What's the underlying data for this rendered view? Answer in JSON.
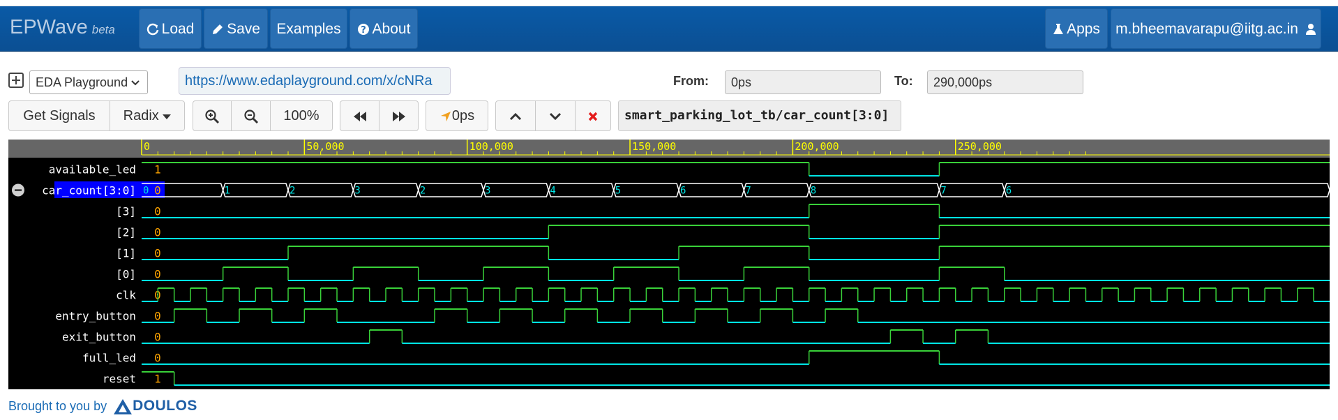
{
  "navbar": {
    "brand": "EPWave",
    "beta": "beta",
    "load": "Load",
    "save": "Save",
    "examples": "Examples",
    "about": "About",
    "apps": "Apps",
    "user": "m.bheemavarapu@iitg.ac.in"
  },
  "controls": {
    "playground_select": "EDA Playground",
    "url": "https://www.edaplayground.com/x/cNRa",
    "from_label": "From:",
    "from_value": "0ps",
    "to_label": "To:",
    "to_value": "290,000ps",
    "get_signals": "Get Signals",
    "radix": "Radix",
    "zoom_level": "100%",
    "cursor_time": "0ps",
    "selected_signal": "smart_parking_lot_tb/car_count[3:0]"
  },
  "icons": {
    "load": "refresh-icon",
    "save": "pencil-icon",
    "about": "question-circle-icon",
    "apps": "flask-icon",
    "user": "user-icon"
  },
  "colors": {
    "navbar": "#0b4f93",
    "wave_bg": "#000000",
    "wave_signal": "#00e5e5",
    "wave_high": "#39d139",
    "ruler_bg": "#666666",
    "ruler_text": "#ffff00",
    "value": "#ffa500",
    "selected": "#0000ff"
  },
  "timeline": {
    "ticks": [
      "0",
      "50,000",
      "100,000",
      "150,000",
      "200,000",
      "250,000"
    ],
    "tick_values": [
      0,
      50000,
      100000,
      150000,
      200000,
      250000
    ],
    "end": 290000,
    "clock_period": 10000
  },
  "signals": [
    {
      "name": "available_led",
      "value": "1",
      "type": "bit",
      "changes": [
        [
          0,
          1
        ],
        [
          205000,
          0
        ],
        [
          245000,
          1
        ]
      ]
    },
    {
      "name": "car_count[3:0]",
      "value": "0",
      "type": "bus",
      "selected": true,
      "collapse": true,
      "segments": [
        [
          0,
          "0"
        ],
        [
          25000,
          "1"
        ],
        [
          45000,
          "2"
        ],
        [
          65000,
          "3"
        ],
        [
          85000,
          "2"
        ],
        [
          105000,
          "3"
        ],
        [
          125000,
          "4"
        ],
        [
          145000,
          "5"
        ],
        [
          165000,
          "6"
        ],
        [
          185000,
          "7"
        ],
        [
          205000,
          "8"
        ],
        [
          245000,
          "7"
        ],
        [
          265000,
          "6"
        ]
      ]
    },
    {
      "name": "[3]",
      "value": "0",
      "type": "bit",
      "changes": [
        [
          0,
          0
        ],
        [
          205000,
          1
        ],
        [
          245000,
          0
        ]
      ]
    },
    {
      "name": "[2]",
      "value": "0",
      "type": "bit",
      "changes": [
        [
          0,
          0
        ],
        [
          125000,
          1
        ],
        [
          205000,
          0
        ],
        [
          245000,
          1
        ]
      ]
    },
    {
      "name": "[1]",
      "value": "0",
      "type": "bit",
      "changes": [
        [
          0,
          0
        ],
        [
          45000,
          1
        ],
        [
          125000,
          0
        ],
        [
          165000,
          1
        ],
        [
          205000,
          0
        ],
        [
          245000,
          1
        ]
      ]
    },
    {
      "name": "[0]",
      "value": "0",
      "type": "bit",
      "changes": [
        [
          0,
          0
        ],
        [
          25000,
          1
        ],
        [
          45000,
          0
        ],
        [
          65000,
          1
        ],
        [
          85000,
          0
        ],
        [
          105000,
          1
        ],
        [
          125000,
          0
        ],
        [
          145000,
          1
        ],
        [
          165000,
          0
        ],
        [
          185000,
          1
        ],
        [
          205000,
          0
        ],
        [
          245000,
          1
        ],
        [
          265000,
          0
        ]
      ]
    },
    {
      "name": "clk",
      "value": "0",
      "type": "clock"
    },
    {
      "name": "entry_button",
      "value": "0",
      "type": "bit",
      "changes": [
        [
          0,
          0
        ],
        [
          10000,
          1
        ],
        [
          20000,
          0
        ],
        [
          30000,
          1
        ],
        [
          40000,
          0
        ],
        [
          50000,
          1
        ],
        [
          60000,
          0
        ],
        [
          90000,
          1
        ],
        [
          100000,
          0
        ],
        [
          110000,
          1
        ],
        [
          120000,
          0
        ],
        [
          130000,
          1
        ],
        [
          140000,
          0
        ],
        [
          150000,
          1
        ],
        [
          160000,
          0
        ],
        [
          170000,
          1
        ],
        [
          180000,
          0
        ],
        [
          190000,
          1
        ],
        [
          200000,
          0
        ],
        [
          210000,
          1
        ],
        [
          220000,
          0
        ]
      ]
    },
    {
      "name": "exit_button",
      "value": "0",
      "type": "bit",
      "changes": [
        [
          0,
          0
        ],
        [
          70000,
          1
        ],
        [
          80000,
          0
        ],
        [
          230000,
          1
        ],
        [
          240000,
          0
        ],
        [
          250000,
          1
        ],
        [
          260000,
          0
        ]
      ]
    },
    {
      "name": "full_led",
      "value": "0",
      "type": "bit",
      "changes": [
        [
          0,
          0
        ],
        [
          205000,
          1
        ],
        [
          245000,
          0
        ]
      ]
    },
    {
      "name": "reset",
      "value": "1",
      "type": "bit",
      "changes": [
        [
          0,
          1
        ],
        [
          10000,
          0
        ]
      ]
    }
  ],
  "footer": {
    "text": "Brought to you by",
    "logo": "DOULOS"
  }
}
